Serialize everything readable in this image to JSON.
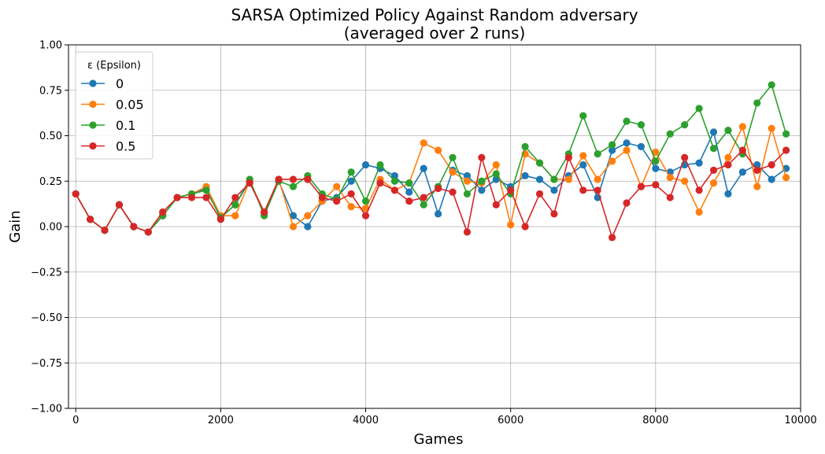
{
  "chart_data": {
    "type": "line",
    "title": "SARSA Optimized Policy Against Random adversary",
    "subtitle": "(averaged over 2 runs)",
    "xlabel": "Games",
    "ylabel": "Gain",
    "xlim": [
      -100,
      10000
    ],
    "ylim": [
      -1.0,
      1.0
    ],
    "xticks": [
      0,
      2000,
      4000,
      6000,
      8000,
      10000
    ],
    "xtick_labels": [
      "0",
      "2000",
      "4000",
      "6000",
      "8000",
      "10000"
    ],
    "yticks": [
      -1.0,
      -0.75,
      -0.5,
      -0.25,
      0.0,
      0.25,
      0.5,
      0.75,
      1.0
    ],
    "ytick_labels": [
      "−1.00",
      "−0.75",
      "−0.50",
      "−0.25",
      "0.00",
      "0.25",
      "0.50",
      "0.75",
      "1.00"
    ],
    "grid": true,
    "legend_title": "ε (Epsilon)",
    "legend_position": "top-left",
    "x": [
      0,
      200,
      400,
      600,
      800,
      1000,
      1200,
      1400,
      1600,
      1800,
      2000,
      2200,
      2400,
      2600,
      2800,
      3000,
      3200,
      3400,
      3600,
      3800,
      4000,
      4200,
      4400,
      4600,
      4800,
      5000,
      5200,
      5400,
      5600,
      5800,
      6000,
      6200,
      6400,
      6600,
      6800,
      7000,
      7200,
      7400,
      7600,
      7800,
      8000,
      8200,
      8400,
      8600,
      8800,
      9000,
      9200,
      9400,
      9600,
      9800
    ],
    "series": [
      {
        "name": "0",
        "color": "#1f77b4",
        "values": [
          0.18,
          0.04,
          -0.02,
          0.12,
          0.0,
          -0.03,
          0.06,
          0.16,
          0.18,
          0.21,
          0.05,
          0.12,
          0.25,
          0.07,
          0.25,
          0.06,
          0.0,
          0.14,
          0.16,
          0.25,
          0.34,
          0.32,
          0.28,
          0.19,
          0.32,
          0.07,
          0.31,
          0.28,
          0.2,
          0.26,
          0.22,
          0.28,
          0.26,
          0.2,
          0.28,
          0.34,
          0.16,
          0.42,
          0.46,
          0.44,
          0.32,
          0.3,
          0.34,
          0.35,
          0.52,
          0.18,
          0.3,
          0.34,
          0.26,
          0.32
        ]
      },
      {
        "name": "0.05",
        "color": "#ff7f0e",
        "values": [
          0.18,
          0.04,
          -0.02,
          0.12,
          0.0,
          -0.03,
          0.08,
          0.16,
          0.18,
          0.22,
          0.06,
          0.06,
          0.25,
          0.08,
          0.26,
          0.0,
          0.06,
          0.14,
          0.22,
          0.11,
          0.1,
          0.26,
          0.2,
          0.24,
          0.46,
          0.42,
          0.3,
          0.25,
          0.24,
          0.34,
          0.01,
          0.4,
          0.35,
          0.26,
          0.26,
          0.39,
          0.26,
          0.36,
          0.42,
          0.22,
          0.41,
          0.27,
          0.25,
          0.08,
          0.24,
          0.38,
          0.55,
          0.22,
          0.54,
          0.27
        ]
      },
      {
        "name": "0.1",
        "color": "#2ca02c",
        "values": [
          0.18,
          0.04,
          -0.02,
          0.12,
          0.0,
          -0.03,
          0.06,
          0.16,
          0.18,
          0.2,
          0.05,
          0.12,
          0.26,
          0.06,
          0.25,
          0.22,
          0.28,
          0.18,
          0.15,
          0.3,
          0.14,
          0.34,
          0.25,
          0.24,
          0.12,
          0.22,
          0.38,
          0.18,
          0.25,
          0.29,
          0.18,
          0.44,
          0.35,
          0.26,
          0.4,
          0.61,
          0.4,
          0.45,
          0.58,
          0.56,
          0.36,
          0.51,
          0.56,
          0.65,
          0.43,
          0.53,
          0.4,
          0.68,
          0.78,
          0.51
        ]
      },
      {
        "name": "0.5",
        "color": "#d62728",
        "values": [
          0.18,
          0.04,
          -0.02,
          0.12,
          0.0,
          -0.03,
          0.08,
          0.16,
          0.16,
          0.16,
          0.04,
          0.16,
          0.24,
          0.08,
          0.26,
          0.26,
          0.26,
          0.16,
          0.14,
          0.18,
          0.06,
          0.24,
          0.2,
          0.14,
          0.16,
          0.21,
          0.19,
          -0.03,
          0.38,
          0.12,
          0.2,
          0.0,
          0.18,
          0.07,
          0.38,
          0.2,
          0.2,
          -0.06,
          0.13,
          0.22,
          0.23,
          0.16,
          0.38,
          0.2,
          0.31,
          0.34,
          0.42,
          0.31,
          0.34,
          0.42
        ]
      }
    ]
  }
}
